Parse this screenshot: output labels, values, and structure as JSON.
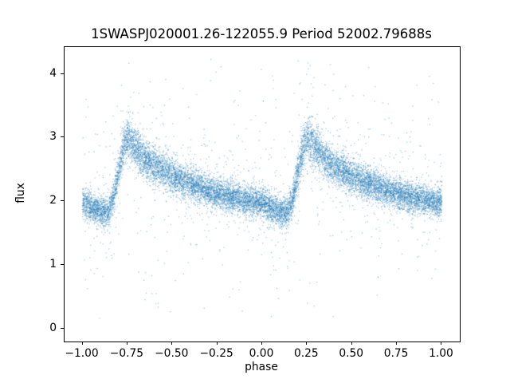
{
  "chart_data": {
    "type": "scatter",
    "title": "1SWASPJ020001.26-122055.9 Period 52002.79688s",
    "xlabel": "phase",
    "ylabel": "flux",
    "xlim": [
      -1.1,
      1.1
    ],
    "ylim": [
      -0.2,
      4.42
    ],
    "xticks": [
      -1.0,
      -0.75,
      -0.5,
      -0.25,
      0.0,
      0.25,
      0.5,
      0.75,
      1.0
    ],
    "xtick_labels": [
      "−1.00",
      "−0.75",
      "−0.50",
      "−0.25",
      "0.00",
      "0.25",
      "0.50",
      "0.75",
      "1.00"
    ],
    "yticks": [
      0,
      1,
      2,
      3,
      4
    ],
    "ytick_labels": [
      "0",
      "1",
      "2",
      "3",
      "4"
    ],
    "grid": false,
    "legend": null,
    "marker_color": "#1f77b4",
    "marker_alpha": 0.45,
    "marker_size_px": 1.2,
    "n_points": 14000,
    "phase_range": [
      -1.0,
      1.0
    ],
    "curve_anchors": [
      [
        0.0,
        1.98
      ],
      [
        0.05,
        1.9
      ],
      [
        0.1,
        1.84
      ],
      [
        0.14,
        1.82
      ],
      [
        0.17,
        2.02
      ],
      [
        0.2,
        2.45
      ],
      [
        0.23,
        2.86
      ],
      [
        0.25,
        3.0
      ],
      [
        0.28,
        2.9
      ],
      [
        0.33,
        2.72
      ],
      [
        0.4,
        2.55
      ],
      [
        0.5,
        2.4
      ],
      [
        0.6,
        2.27
      ],
      [
        0.7,
        2.16
      ],
      [
        0.8,
        2.08
      ],
      [
        0.9,
        2.02
      ],
      [
        1.0,
        1.98
      ]
    ],
    "noise_sigma": 0.12,
    "peak_extra_sigma": 0.05,
    "outlier_fraction": 0.05,
    "outlier_sigma": 0.55,
    "uniform_outlier_fraction": 0.012,
    "uniform_outlier_range": [
      0.15,
      4.25
    ]
  }
}
